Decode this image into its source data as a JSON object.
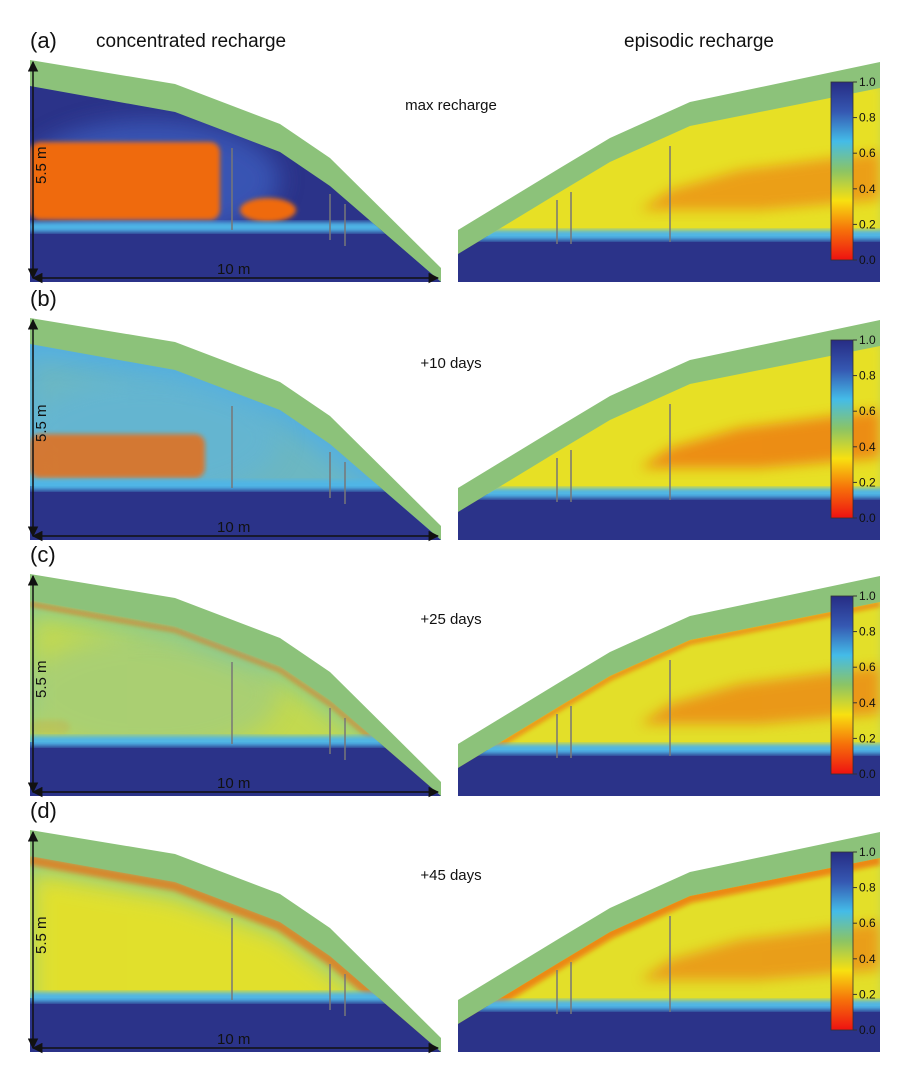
{
  "figure": {
    "column_titles": {
      "left": "concentrated recharge",
      "right": "episodic recharge"
    },
    "dimensions": {
      "height_label": "5.5 m",
      "width_label": "10 m"
    },
    "colorbar": {
      "ticks": [
        "1.0",
        "0.8",
        "0.6",
        "0.4",
        "0.2",
        "0.0"
      ],
      "stops": [
        "#ee1111",
        "#f6700a",
        "#f8e010",
        "#8cc464",
        "#44bce8",
        "#3558b2",
        "#272c84"
      ]
    },
    "colors": {
      "green_layer": "#8cc27a",
      "saturated_blue": "#2b3389",
      "dry_orange": "#ef6a0e",
      "moist_yellow": "#f0e31c"
    },
    "panels": [
      {
        "letter": "(a)",
        "time_label": "max recharge"
      },
      {
        "letter": "(b)",
        "time_label": "+10 days"
      },
      {
        "letter": "(c)",
        "time_label": "+25 days"
      },
      {
        "letter": "(d)",
        "time_label": "+45 days"
      }
    ]
  }
}
